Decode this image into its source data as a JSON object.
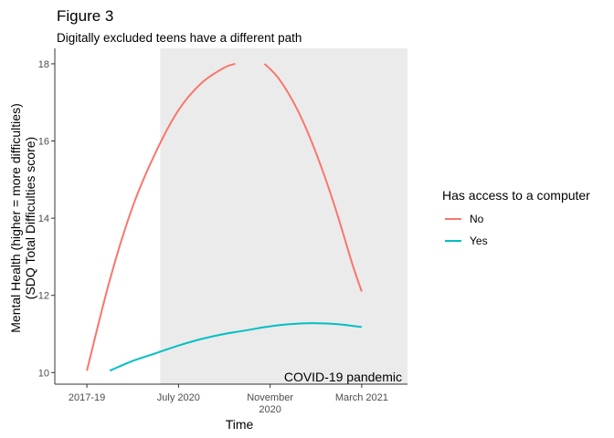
{
  "chart_data": {
    "type": "line",
    "title": "Figure 3",
    "subtitle": "Digitally excluded teens have a different path",
    "xlabel": "Time",
    "ylabel_line1": "Mental Health (higher = more difficulties)",
    "ylabel_line2": "(SDQ Total Difficulties score)",
    "x_ticks": [
      {
        "pos": 0.0,
        "line1": "2017-19",
        "line2": ""
      },
      {
        "pos": 1.0,
        "line1": "July 2020",
        "line2": ""
      },
      {
        "pos": 2.0,
        "line1": "November",
        "line2": "2020"
      },
      {
        "pos": 3.0,
        "line1": "March 2021",
        "line2": ""
      }
    ],
    "xlim": [
      -0.35,
      3.5
    ],
    "y_ticks": [
      10,
      12,
      14,
      16,
      18
    ],
    "ylim": [
      9.7,
      18.4
    ],
    "grid": false,
    "shaded_region": {
      "x_start": 0.8,
      "x_end": 3.5,
      "color": "#ebebeb",
      "label": "COVID-19 pandemic"
    },
    "legend": {
      "title": "Has access to a computer",
      "position": "right",
      "items": [
        {
          "label": "No",
          "color": "#f8766d"
        },
        {
          "label": "Yes",
          "color": "#00bfc4"
        }
      ]
    },
    "series": [
      {
        "name": "No",
        "color": "#f8766d",
        "segments": [
          {
            "x": [
              0.0,
              0.25,
              0.5,
              0.75,
              1.0,
              1.25,
              1.5,
              1.62
            ],
            "y": [
              10.05,
              12.4,
              14.3,
              15.7,
              16.8,
              17.5,
              17.9,
              18.0
            ]
          },
          {
            "x": [
              1.94,
              2.1,
              2.3,
              2.5,
              2.7,
              2.9,
              3.0
            ],
            "y": [
              18.0,
              17.6,
              16.8,
              15.7,
              14.35,
              12.8,
              12.1
            ]
          }
        ]
      },
      {
        "name": "Yes",
        "color": "#00bfc4",
        "segments": [
          {
            "x": [
              0.25,
              0.5,
              0.75,
              1.0,
              1.25,
              1.5,
              1.75,
              2.0,
              2.25,
              2.5,
              2.75,
              3.0
            ],
            "y": [
              10.05,
              10.3,
              10.5,
              10.7,
              10.87,
              11.0,
              11.1,
              11.2,
              11.26,
              11.28,
              11.25,
              11.18
            ]
          }
        ]
      }
    ]
  }
}
